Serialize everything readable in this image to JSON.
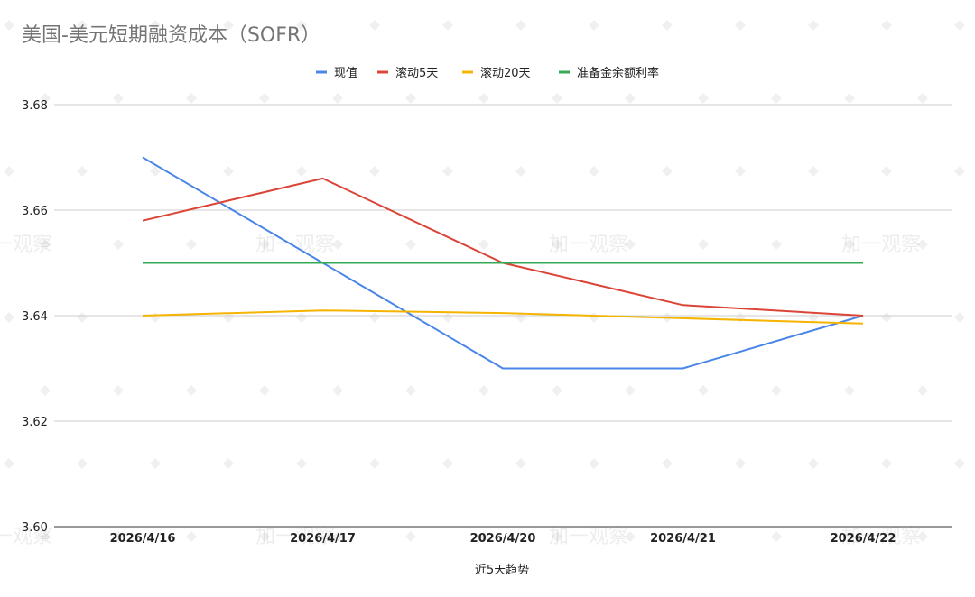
{
  "chart_data": {
    "type": "line",
    "title": "美国-美元短期融资成本（SOFR）",
    "xlabel": "近5天趋势",
    "ylabel": "",
    "categories": [
      "2026/4/16",
      "2026/4/17",
      "2026/4/20",
      "2026/4/21",
      "2026/4/22"
    ],
    "ylim": [
      3.6,
      3.68
    ],
    "yticks": [
      "3.60",
      "3.62",
      "3.64",
      "3.66",
      "3.68"
    ],
    "legend_position": "top-center",
    "grid": true,
    "series": [
      {
        "name": "现值",
        "color": "#4a86e8",
        "values": [
          3.67,
          3.65,
          3.63,
          3.63,
          3.64
        ]
      },
      {
        "name": "滚动5天",
        "color": "#db4437",
        "values": [
          3.658,
          3.666,
          3.65,
          3.642,
          3.64
        ]
      },
      {
        "name": "滚动20天",
        "color": "#f4b400",
        "values": [
          3.64,
          3.641,
          3.6405,
          3.6395,
          3.6385
        ]
      },
      {
        "name": "准备金余额利率",
        "color": "#34a853",
        "values": [
          3.65,
          3.65,
          3.65,
          3.65,
          3.65
        ]
      }
    ],
    "watermark": "加一观察"
  }
}
